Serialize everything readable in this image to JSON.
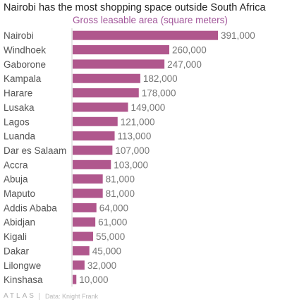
{
  "chart_data": {
    "type": "bar",
    "orientation": "horizontal",
    "title": "Nairobi has the most shopping space outside South Africa",
    "subtitle": "Gross leasable area (square meters)",
    "categories": [
      "Nairobi",
      "Windhoek",
      "Gaborone",
      "Kampala",
      "Harare",
      "Lusaka",
      "Lagos",
      "Luanda",
      "Dar es Salaam",
      "Accra",
      "Abuja",
      "Maputo",
      "Addis Ababa",
      "Abidjan",
      "Kigali",
      "Dakar",
      "Lilongwe",
      "Kinshasa"
    ],
    "values": [
      391000,
      260000,
      247000,
      182000,
      178000,
      149000,
      121000,
      113000,
      107000,
      103000,
      81000,
      81000,
      64000,
      61000,
      55000,
      45000,
      32000,
      10000
    ],
    "value_labels": [
      "391,000",
      "260,000",
      "247,000",
      "182,000",
      "178,000",
      "149,000",
      "121,000",
      "113,000",
      "107,000",
      "103,000",
      "81,000",
      "81,000",
      "64,000",
      "61,000",
      "55,000",
      "45,000",
      "32,000",
      "10,000"
    ],
    "xlim": [
      0,
      391000
    ],
    "bar_color": "#b0578d",
    "grid": false
  },
  "footer": {
    "brand": "ATLAS",
    "source": "Data: Knight Frank"
  },
  "colors": {
    "subtitle": "#a2569a",
    "axis": "#cccccc"
  }
}
